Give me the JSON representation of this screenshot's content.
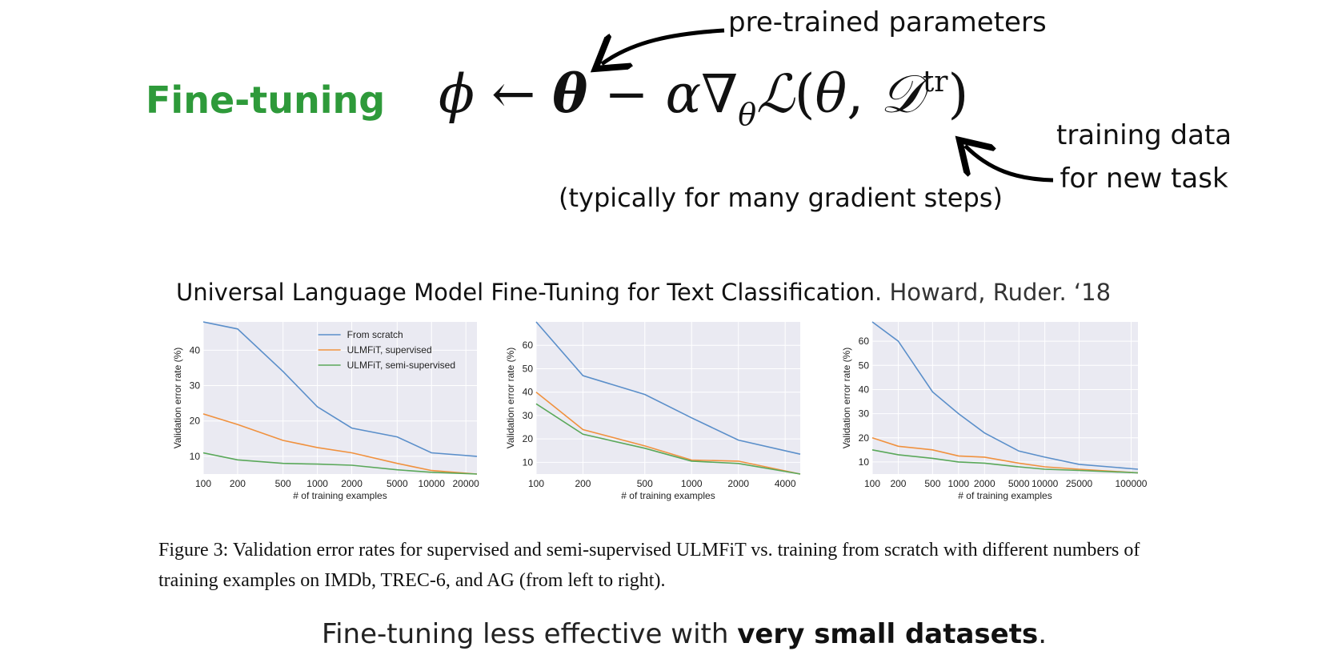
{
  "heading": "Fine-tuning",
  "formula": {
    "phi": "ϕ",
    "arrow": "←",
    "theta": "θ",
    "minus": "−",
    "alpha": "α",
    "nabla": "∇",
    "sub_theta": "θ",
    "loss": "ℒ",
    "open": "(",
    "theta2": "θ",
    "comma": ",",
    "D": "𝒟",
    "sup": "tr",
    "close": ")"
  },
  "annotations": {
    "params": "pre-trained parameters",
    "data_line1": "training data",
    "data_line2": "for new task",
    "steps": "(typically for many gradient steps)"
  },
  "paper": {
    "title": "Universal Language Model Fine-Tuning for Text Classification",
    "authors": ". Howard, Ruder. ‘18"
  },
  "caption": "Figure 3: Validation error rates for supervised and semi-supervised ULMFiT vs. training from scratch with different numbers of training examples on IMDb, TREC-6, and AG (from left to right).",
  "conclusion": {
    "prefix": "Fine-tuning less effective with ",
    "bold": "very small datasets",
    "suffix": "."
  },
  "colors": {
    "heading": "#2e9a3a",
    "plot_bg": "#eaeaf2",
    "grid": "#ffffff",
    "from_scratch": "#5b8fca",
    "supervised": "#f0913e",
    "semi_supervised": "#5aa85a"
  },
  "chart_data": [
    {
      "type": "line",
      "dataset": "IMDb",
      "xscale": "log",
      "xlabel": "# of training examples",
      "ylabel": "Validation error rate (%)",
      "xlim": [
        100,
        25000
      ],
      "ylim": [
        5,
        48
      ],
      "xticks": [
        100,
        200,
        500,
        1000,
        2000,
        5000,
        10000,
        20000
      ],
      "yticks": [
        10,
        20,
        30,
        40
      ],
      "grid": true,
      "legend": "top-right",
      "x": [
        100,
        200,
        500,
        1000,
        2000,
        5000,
        10000,
        25000
      ],
      "series": [
        {
          "name": "From scratch",
          "values": [
            48,
            46,
            34,
            24,
            18,
            15.5,
            11,
            10
          ]
        },
        {
          "name": "ULMFiT, supervised",
          "values": [
            22,
            19,
            14.5,
            12.5,
            11,
            8,
            6,
            5
          ]
        },
        {
          "name": "ULMFiT, semi-supervised",
          "values": [
            11,
            9,
            8,
            7.8,
            7.5,
            6.2,
            5.5,
            5
          ]
        }
      ]
    },
    {
      "type": "line",
      "dataset": "TREC-6",
      "xscale": "log",
      "xlabel": "# of training examples",
      "ylabel": "Validation error rate (%)",
      "xlim": [
        100,
        5000
      ],
      "ylim": [
        5,
        70
      ],
      "xticks": [
        100,
        200,
        500,
        1000,
        2000,
        4000
      ],
      "yticks": [
        10,
        20,
        30,
        40,
        50,
        60
      ],
      "grid": true,
      "x": [
        100,
        200,
        500,
        1000,
        2000,
        5000
      ],
      "series": [
        {
          "name": "From scratch",
          "values": [
            70,
            47,
            39,
            29,
            19.5,
            13.5
          ]
        },
        {
          "name": "ULMFiT, supervised",
          "values": [
            40,
            24,
            17,
            11,
            10.5,
            5
          ]
        },
        {
          "name": "ULMFiT, semi-supervised",
          "values": [
            35,
            22,
            16,
            10.5,
            9.5,
            5
          ]
        }
      ]
    },
    {
      "type": "line",
      "dataset": "AG",
      "xscale": "log",
      "xlabel": "# of training examples",
      "ylabel": "Validation error rate (%)",
      "xlim": [
        100,
        120000
      ],
      "ylim": [
        5,
        68
      ],
      "xticks": [
        100,
        200,
        500,
        1000,
        2000,
        5000,
        10000,
        25000,
        100000
      ],
      "ytickvals": [
        10,
        20,
        30,
        40,
        50,
        60
      ],
      "grid": true,
      "x": [
        100,
        200,
        500,
        1000,
        2000,
        5000,
        10000,
        25000,
        120000
      ],
      "series": [
        {
          "name": "From scratch",
          "values": [
            68,
            60,
            39,
            30,
            22,
            14.5,
            12,
            9,
            7
          ]
        },
        {
          "name": "ULMFiT, supervised",
          "values": [
            20,
            16.5,
            15,
            12.5,
            12,
            9.5,
            8,
            7,
            5.5
          ]
        },
        {
          "name": "ULMFiT, semi-supervised",
          "values": [
            15,
            13,
            11.5,
            10,
            9.5,
            8,
            7,
            6.5,
            5.5
          ]
        }
      ]
    }
  ]
}
